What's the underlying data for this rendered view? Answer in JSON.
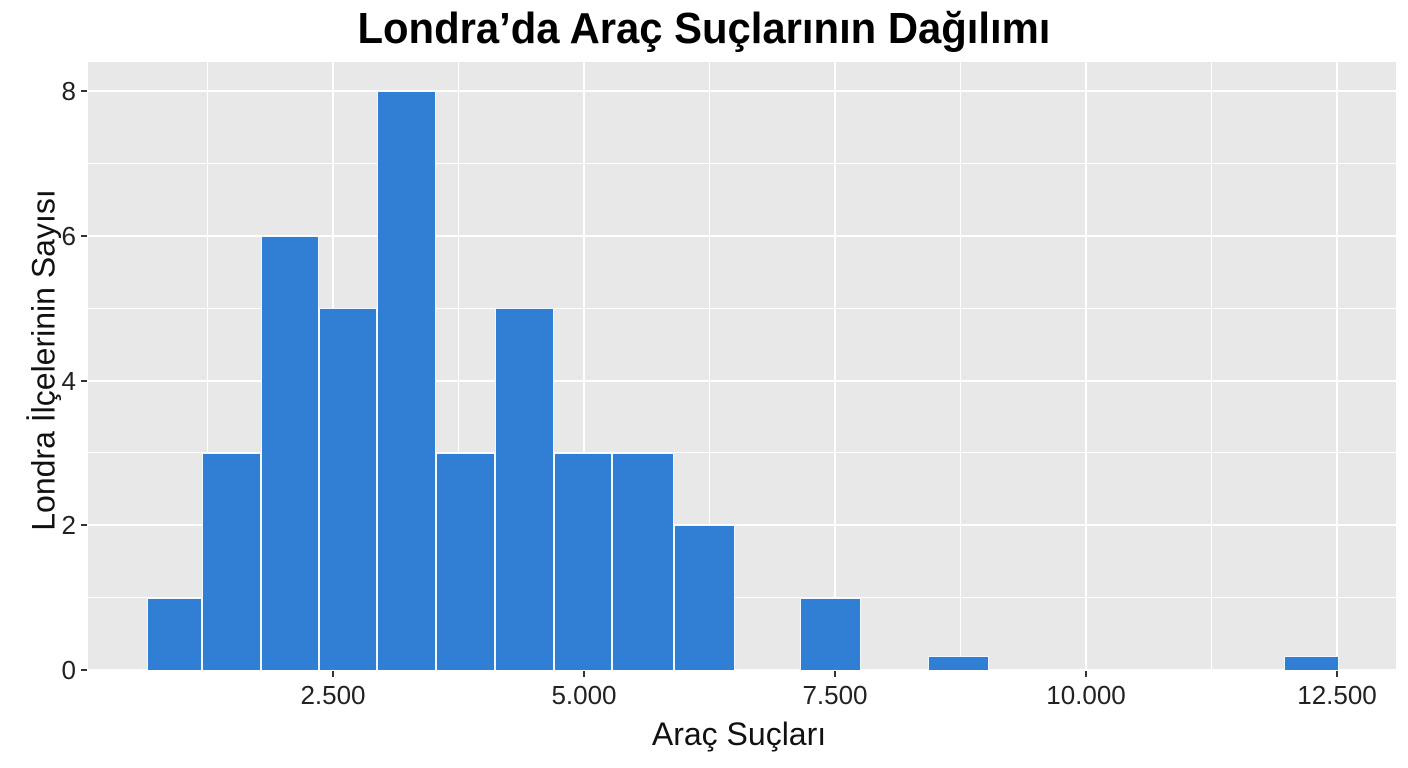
{
  "chart_data": {
    "type": "bar",
    "subtype": "histogram",
    "title": "Londra’da Araç Suçlarının Dağılımı",
    "xlabel": "Araç Suçları",
    "ylabel": "Londra İlçelerinin Sayısı",
    "xlim": [
      -100,
      13100
    ],
    "ylim": [
      0,
      8.3
    ],
    "x_ticks": [
      2500,
      5000,
      7500,
      10000,
      12500
    ],
    "x_tick_labels": [
      "2.500",
      "5.000",
      "7.500",
      "10.000",
      "12.500"
    ],
    "y_ticks": [
      0,
      2,
      4,
      6,
      8
    ],
    "y_tick_labels": [
      "0",
      "2",
      "4",
      "6",
      "8"
    ],
    "grid": true,
    "bar_color": "#317fd4",
    "panel_background": "#e8e8e8",
    "bins": [
      {
        "x_start": 650,
        "x_end": 1200,
        "count": 1
      },
      {
        "x_start": 1200,
        "x_end": 1780,
        "count": 3
      },
      {
        "x_start": 1780,
        "x_end": 2360,
        "count": 6
      },
      {
        "x_start": 2360,
        "x_end": 2940,
        "count": 5
      },
      {
        "x_start": 2940,
        "x_end": 3530,
        "count": 8
      },
      {
        "x_start": 3530,
        "x_end": 4110,
        "count": 3
      },
      {
        "x_start": 4110,
        "x_end": 4700,
        "count": 5
      },
      {
        "x_start": 4700,
        "x_end": 5280,
        "count": 3
      },
      {
        "x_start": 5280,
        "x_end": 5900,
        "count": 3
      },
      {
        "x_start": 5900,
        "x_end": 6500,
        "count": 2
      },
      {
        "x_start": 7150,
        "x_end": 7760,
        "count": 1
      },
      {
        "x_start": 8430,
        "x_end": 9030,
        "count": 0.2
      },
      {
        "x_start": 11970,
        "x_end": 12520,
        "count": 0.2
      }
    ],
    "categories": [
      "650–1200",
      "1200–1780",
      "1780–2360",
      "2360–2940",
      "2940–3530",
      "3530–4110",
      "4110–4700",
      "4700–5280",
      "5280–5900",
      "5900–6500",
      "7150–7760",
      "8430–9030",
      "11970–12520"
    ],
    "values": [
      1,
      3,
      6,
      5,
      8,
      3,
      5,
      3,
      3,
      2,
      1,
      0.2,
      0.2
    ],
    "legend": null
  }
}
